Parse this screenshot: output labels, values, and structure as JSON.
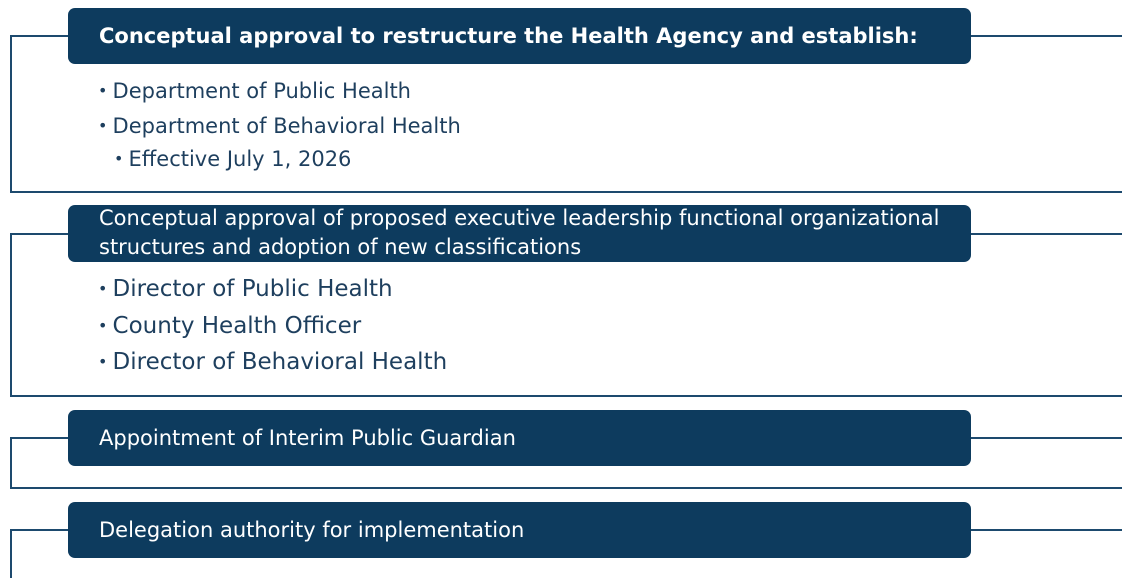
{
  "sections": [
    {
      "title": "Conceptual approval to restructure the Health Agency and establish:",
      "items": [
        {
          "text": "Department of Public Health"
        },
        {
          "text": "Department of Behavioral Health",
          "subitems": [
            "Effective July 1, 2026"
          ]
        }
      ]
    },
    {
      "title": "Conceptual approval of proposed executive leadership functional organizational structures and adoption of new classifications",
      "items": [
        {
          "text": "Director of Public Health"
        },
        {
          "text": "County Health Officer"
        },
        {
          "text": "Director of Behavioral Health"
        }
      ]
    },
    {
      "title": "Appointment of Interim Public Guardian",
      "items": []
    },
    {
      "title": "Delegation authority for implementation",
      "items": []
    }
  ]
}
